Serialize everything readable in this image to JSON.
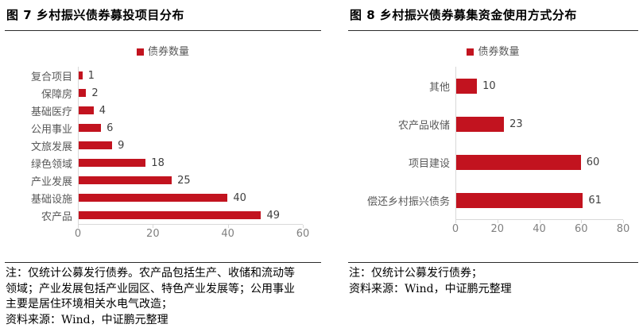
{
  "chart_data": [
    {
      "type": "bar",
      "orientation": "horizontal",
      "title": "图 7 乡村振兴债券募投项目分布",
      "legend": "债券数量",
      "categories": [
        "复合项目",
        "保障房",
        "基础医疗",
        "公用事业",
        "文旅发展",
        "绿色领域",
        "产业发展",
        "基础设施",
        "农产品"
      ],
      "values": [
        1,
        2,
        4,
        6,
        9,
        18,
        25,
        40,
        49
      ],
      "xlim": [
        0,
        60
      ],
      "xticks": [
        0,
        20,
        40,
        60
      ],
      "bar_color": "#C2131F",
      "grid": false,
      "legend_position": "top-center",
      "notes": [
        "注：仅统计公募发行债券。农产品包括生产、收储和流动等",
        "领域；产业发展包括产业园区、特色产业发展等；公用事业",
        "主要是居住环境相关水电气改造；",
        "资料来源：Wind，中证鹏元整理"
      ]
    },
    {
      "type": "bar",
      "orientation": "horizontal",
      "title": "图 8 乡村振兴债券募集资金使用方式分布",
      "legend": "债券数量",
      "categories": [
        "其他",
        "农产品收储",
        "项目建设",
        "偿还乡村振兴债务"
      ],
      "values": [
        10,
        23,
        60,
        61
      ],
      "xlim": [
        0,
        80
      ],
      "xticks": [
        0,
        20,
        40,
        60,
        80
      ],
      "bar_color": "#C2131F",
      "grid": false,
      "legend_position": "top-center",
      "notes": [
        "注：仅统计公募发行债券；",
        "资料来源：Wind，中证鹏元整理"
      ]
    }
  ]
}
